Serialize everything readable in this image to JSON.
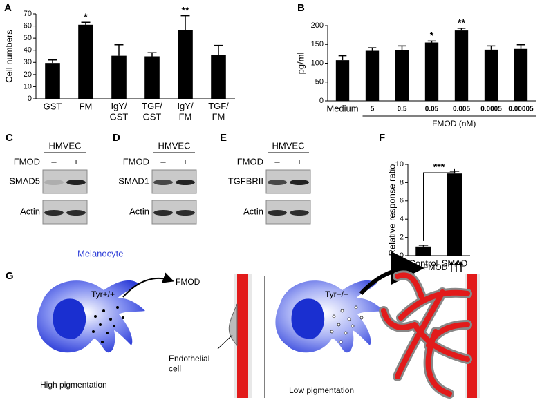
{
  "chart_data": [
    {
      "type": "bar",
      "panel": "A",
      "ylabel": "Cell numbers",
      "categories": [
        "GST",
        "FM",
        "IgY/\nGST",
        "TGF/\nGST",
        "IgY/\nFM",
        "TGF/\nFM"
      ],
      "values": [
        29.5,
        61,
        35.5,
        35,
        56.5,
        36
      ],
      "errors": [
        2.5,
        2,
        9,
        3,
        12,
        8
      ],
      "annotations": [
        null,
        "*",
        null,
        null,
        "**",
        null
      ],
      "color": "#000000",
      "ylim": [
        0,
        70
      ],
      "yticks": [
        0,
        10,
        20,
        30,
        40,
        50,
        60,
        70
      ]
    },
    {
      "type": "bar",
      "panel": "B",
      "ylabel": "pg/ml",
      "xlabel": "FMOD (nM)",
      "categories": [
        "Medium",
        "5",
        "0.5",
        "0.05",
        "0.005",
        "0.0005",
        "0.00005"
      ],
      "values": [
        108,
        133,
        135,
        155,
        187,
        136,
        138
      ],
      "errors": [
        12,
        8,
        11,
        4,
        6,
        10,
        11
      ],
      "annotations": [
        null,
        null,
        null,
        "*",
        "**",
        null,
        null
      ],
      "color": "#000000",
      "ylim": [
        0,
        200
      ],
      "yticks": [
        0,
        50,
        100,
        150,
        200
      ]
    },
    {
      "type": "bar",
      "panel": "F",
      "ylabel": "Relative response ratio",
      "categories": [
        "Control",
        "SMAD"
      ],
      "values": [
        1.0,
        9.0
      ],
      "errors": [
        0.15,
        0.25
      ],
      "annotation": "***",
      "color": "#000000",
      "ylim": [
        0,
        10
      ],
      "yticks": [
        0,
        2,
        4,
        6,
        8,
        10
      ]
    }
  ],
  "blots": [
    {
      "panel": "C",
      "cell": "HMVEC",
      "treatment": "FMOD",
      "lanes": [
        "–",
        "+"
      ],
      "rows": [
        "SMAD5",
        "Actin"
      ]
    },
    {
      "panel": "D",
      "cell": "HMVEC",
      "treatment": "FMOD",
      "lanes": [
        "–",
        "+"
      ],
      "rows": [
        "SMAD1",
        "Actin"
      ]
    },
    {
      "panel": "E",
      "cell": "HMVEC",
      "treatment": "FMOD",
      "lanes": [
        "–",
        "+"
      ],
      "rows": [
        "TGFBRII",
        "Actin"
      ]
    }
  ],
  "diagram": {
    "panel": "G",
    "cell_type": "Melanocyte",
    "left": {
      "genotype": "Tyr+/+",
      "factor": "FMOD",
      "target": "Endothelial\ncell",
      "caption": "High pigmentation"
    },
    "right": {
      "genotype": "Tyr−/−",
      "factor": "FMOD",
      "caption": "Low pigmentation"
    }
  }
}
